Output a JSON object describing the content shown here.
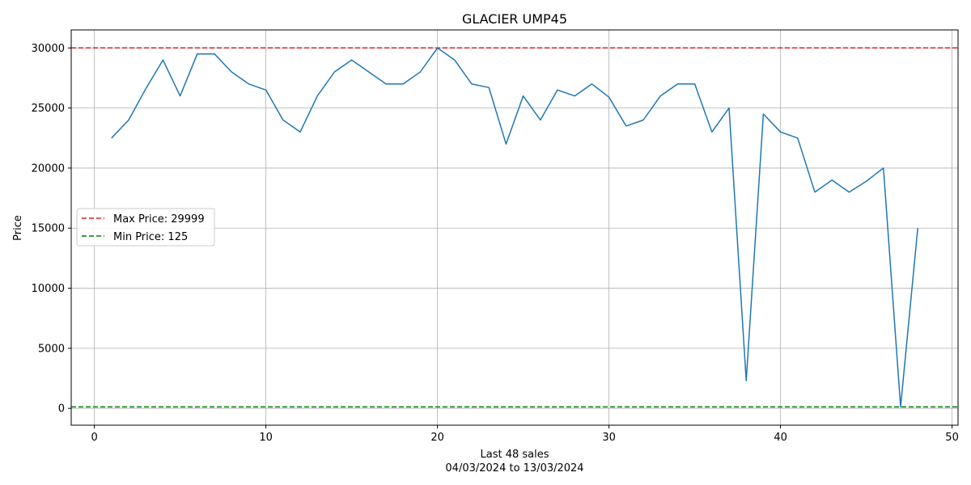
{
  "chart_data": {
    "type": "line",
    "title": "GLACIER UMP45",
    "xlabel_line1": "Last 48 sales",
    "xlabel_line2": "04/03/2024 to 13/03/2024",
    "ylabel": "Price",
    "xlim": [
      -1.35,
      50.35
    ],
    "ylim": [
      -1400,
      31500
    ],
    "xticks": [
      0,
      10,
      20,
      30,
      40,
      50
    ],
    "yticks": [
      0,
      5000,
      10000,
      15000,
      20000,
      25000,
      30000
    ],
    "grid": true,
    "legend_position": "center-left",
    "series": [
      {
        "color": "#1f77b4",
        "x": [
          1,
          2,
          3,
          4,
          5,
          6,
          7,
          8,
          9,
          10,
          11,
          12,
          13,
          14,
          15,
          16,
          17,
          18,
          19,
          20,
          21,
          22,
          23,
          24,
          25,
          26,
          27,
          28,
          29,
          30,
          31,
          32,
          33,
          34,
          35,
          36,
          37,
          38,
          39,
          40,
          41,
          42,
          43,
          44,
          45,
          46,
          47,
          48
        ],
        "y": [
          22500,
          24000,
          26600,
          29000,
          26000,
          29500,
          29500,
          28000,
          27000,
          26500,
          24000,
          23000,
          26000,
          28000,
          29000,
          28000,
          27000,
          27000,
          28000,
          29999,
          29000,
          27000,
          26700,
          22000,
          26000,
          24000,
          26500,
          26000,
          27000,
          25900,
          23500,
          24000,
          26000,
          27000,
          27000,
          23000,
          25000,
          2300,
          24500,
          23000,
          22500,
          18000,
          19000,
          18000,
          18900,
          20000,
          125,
          15000
        ]
      }
    ],
    "reference_lines": [
      {
        "label": "Max Price: 29999",
        "value": 29999,
        "color": "#d62728"
      },
      {
        "label": "Min Price: 125",
        "value": 125,
        "color": "#008000"
      }
    ]
  }
}
